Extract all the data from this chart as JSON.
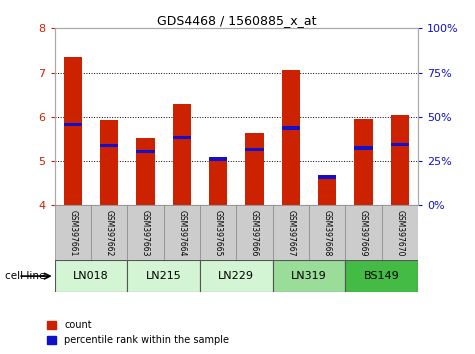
{
  "title": "GDS4468 / 1560885_x_at",
  "samples": [
    "GSM397661",
    "GSM397662",
    "GSM397663",
    "GSM397664",
    "GSM397665",
    "GSM397666",
    "GSM397667",
    "GSM397668",
    "GSM397669",
    "GSM397670"
  ],
  "count_values": [
    7.35,
    5.92,
    5.52,
    6.28,
    5.05,
    5.63,
    7.05,
    4.64,
    5.95,
    6.05
  ],
  "percentile_values": [
    5.83,
    5.35,
    5.22,
    5.53,
    5.05,
    5.26,
    5.75,
    4.64,
    5.3,
    5.37
  ],
  "bar_bottom": 4.0,
  "ylim": [
    4.0,
    8.0
  ],
  "right_yticks": [
    0,
    25,
    50,
    75,
    100
  ],
  "right_yticklabels": [
    "0%",
    "25%",
    "50%",
    "75%",
    "100%"
  ],
  "left_yticks": [
    4,
    5,
    6,
    7,
    8
  ],
  "bar_color": "#cc2200",
  "percentile_color": "#1111cc",
  "bar_width": 0.5,
  "cell_lines": [
    {
      "name": "LN018",
      "indices": [
        0,
        1
      ],
      "color": "#d4f5d4"
    },
    {
      "name": "LN215",
      "indices": [
        2,
        3
      ],
      "color": "#d4f5d4"
    },
    {
      "name": "LN229",
      "indices": [
        4,
        5
      ],
      "color": "#d4f5d4"
    },
    {
      "name": "LN319",
      "indices": [
        6,
        7
      ],
      "color": "#99dd99"
    },
    {
      "name": "BS149",
      "indices": [
        8,
        9
      ],
      "color": "#44bb44"
    }
  ],
  "tick_label_color_left": "#cc2200",
  "tick_label_color_right": "#1111cc",
  "legend_count_label": "count",
  "legend_percentile_label": "percentile rank within the sample",
  "background_sample_row": "#cccccc",
  "background_sample_row_border": "#888888"
}
